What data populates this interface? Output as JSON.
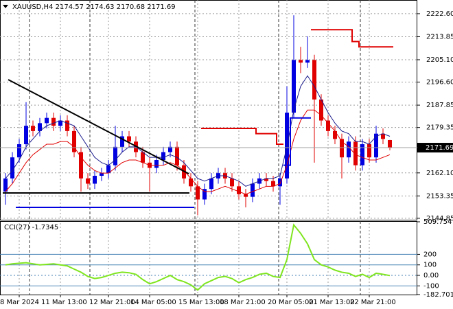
{
  "chart_data": {
    "type": "candlestick",
    "symbol": "XAUUSD,H4",
    "header_values": [
      2174.57,
      2174.63,
      2170.68,
      2171.69
    ],
    "up_color": "#0000e0",
    "down_color": "#e00000",
    "xlim": [
      -0.8,
      60
    ],
    "xticks": [
      {
        "value": 2,
        "label": "8 Mar 2024"
      },
      {
        "value": 8,
        "label": "11 Mar 13:00"
      },
      {
        "value": 15,
        "label": "12 Mar 21:00"
      },
      {
        "value": 21,
        "label": "14 Mar 05:00"
      },
      {
        "value": 28,
        "label": "15 Mar 13:00"
      },
      {
        "value": 34,
        "label": "18 Mar 21:00"
      },
      {
        "value": 41,
        "label": "20 Mar 05:00"
      },
      {
        "value": 47,
        "label": "21 Mar 13:00"
      },
      {
        "value": 53,
        "label": "22 Mar 21:00"
      }
    ],
    "ylim": [
      2144.3,
      2227.8
    ],
    "yticks": [
      {
        "value": 2222.6,
        "label": "2222.60"
      },
      2213.85,
      {
        "value": 2205.1,
        "label": "2205.10"
      },
      {
        "value": 2196.6,
        "label": "2196.60"
      },
      2187.85,
      2179.35,
      {
        "value": 2162.1,
        "label": "2162.10"
      },
      2153.35,
      2144.85
    ],
    "grid": true,
    "open": [
      2155,
      2160,
      2168,
      2173,
      2180,
      2178,
      2181,
      2183,
      2180,
      2182,
      2178,
      2170,
      2160,
      2158,
      2161,
      2162,
      2165,
      2172,
      2176,
      2174,
      2170,
      2166,
      2164,
      2167,
      2170,
      2172,
      2165,
      2160,
      2157,
      2152,
      2156,
      2160,
      2162,
      2160,
      2157,
      2154,
      2153,
      2158,
      2160,
      2159,
      2157,
      2160,
      2185,
      2205,
      2204,
      2205,
      2190,
      2182,
      2178,
      2175,
      2168,
      2174,
      2165,
      2173,
      2168,
      2177,
      2174.57
    ],
    "high": [
      2162,
      2170,
      2175,
      2189,
      2182,
      2183,
      2185,
      2185,
      2184,
      2184,
      2180,
      2172,
      2162,
      2163,
      2164,
      2167,
      2180,
      2178,
      2178,
      2176,
      2172,
      2168,
      2169,
      2172,
      2174,
      2174,
      2167,
      2162,
      2159,
      2158,
      2162,
      2164,
      2164,
      2162,
      2159,
      2156,
      2160,
      2162,
      2162,
      2161,
      2162,
      2195,
      2222,
      2210,
      2214,
      2207,
      2192,
      2184,
      2180,
      2177,
      2176,
      2176,
      2175,
      2175,
      2180,
      2179,
      2174.63
    ],
    "low": [
      2150,
      2158,
      2166,
      2171,
      2176,
      2176,
      2179,
      2178,
      2178,
      2176,
      2168,
      2155,
      2156,
      2156,
      2159,
      2160,
      2163,
      2170,
      2172,
      2168,
      2164,
      2155,
      2162,
      2165,
      2168,
      2163,
      2158,
      2155,
      2146,
      2150,
      2154,
      2158,
      2158,
      2155,
      2152,
      2149,
      2151,
      2156,
      2157,
      2155,
      2150,
      2158,
      2183,
      2200,
      2202,
      2166,
      2180,
      2176,
      2173,
      2160,
      2166,
      2163,
      2163,
      2166,
      2166,
      2173,
      2170.68
    ],
    "close": [
      2160,
      2168,
      2173,
      2180,
      2178,
      2181,
      2183,
      2180,
      2182,
      2178,
      2170,
      2160,
      2158,
      2161,
      2162,
      2165,
      2172,
      2176,
      2174,
      2170,
      2166,
      2164,
      2167,
      2170,
      2172,
      2165,
      2160,
      2157,
      2152,
      2156,
      2160,
      2162,
      2160,
      2157,
      2154,
      2153,
      2158,
      2160,
      2159,
      2157,
      2160,
      2185,
      2205,
      2204,
      2205,
      2190,
      2182,
      2178,
      2175,
      2168,
      2174,
      2165,
      2173,
      2168,
      2177,
      2175,
      2171.69
    ],
    "series": [
      {
        "color": "#e00000",
        "style": "line",
        "values": [
          2155,
          2158,
          2162,
          2166,
          2169,
          2171,
          2173,
          2173,
          2174,
          2174,
          2172,
          2168,
          2165,
          2163,
          2162,
          2162,
          2164,
          2166,
          2167,
          2167,
          2166,
          2165,
          2165,
          2165,
          2166,
          2165,
          2163,
          2160,
          2157,
          2155,
          2155,
          2156,
          2157,
          2156,
          2155,
          2154,
          2155,
          2156,
          2157,
          2157,
          2158,
          2165,
          2175,
          2182,
          2186,
          2186,
          2184,
          2181,
          2178,
          2174,
          2172,
          2169,
          2168,
          2167,
          2167,
          2168,
          2169
        ]
      },
      {
        "color": "#1a1a8c",
        "style": "line",
        "values": [
          2160,
          2163,
          2167,
          2172,
          2175,
          2178,
          2180,
          2181,
          2182,
          2181,
          2180,
          2176,
          2172,
          2168,
          2166,
          2165,
          2167,
          2170,
          2172,
          2172,
          2170,
          2168,
          2168,
          2168,
          2169,
          2168,
          2166,
          2163,
          2160,
          2159,
          2160,
          2161,
          2161,
          2160,
          2159,
          2157,
          2158,
          2159,
          2160,
          2160,
          2161,
          2172,
          2186,
          2195,
          2199,
          2195,
          2190,
          2185,
          2181,
          2178,
          2177,
          2174,
          2174,
          2173,
          2176,
          2177,
          2176
        ]
      },
      {
        "color": "#e00000",
        "style": "step",
        "values": [
          null,
          null,
          null,
          null,
          null,
          null,
          null,
          null,
          null,
          null,
          null,
          null,
          null,
          null,
          null,
          null,
          null,
          null,
          null,
          null,
          null,
          null,
          null,
          null,
          null,
          null,
          null,
          null,
          null,
          2179,
          2179,
          2179,
          2179,
          2179,
          2179,
          2179,
          2179,
          2177,
          2177,
          2177,
          2173,
          null,
          null,
          null,
          null,
          2216.5,
          2216.5,
          2216.5,
          2216.5,
          2216.5,
          2216.5,
          2212,
          2210,
          2210,
          2210,
          2210,
          2210
        ]
      },
      {
        "color": "#0000e0",
        "style": "step",
        "values": [
          null,
          null,
          2149,
          2149,
          2149,
          2149,
          2149,
          2149,
          2149,
          2149,
          2149,
          2149,
          2149,
          2149,
          2149,
          2149,
          2149,
          2149,
          2149,
          2149,
          2149,
          2149,
          2149,
          2149,
          2149,
          2149,
          2149,
          2149,
          null,
          null,
          null,
          null,
          null,
          null,
          null,
          null,
          null,
          null,
          null,
          null,
          null,
          2165,
          2183,
          2183,
          2183,
          null,
          null,
          null,
          null,
          null,
          null,
          null,
          null,
          null,
          null,
          null,
          null
        ]
      }
    ],
    "indicator": {
      "title": "CCI(27) -1.7345",
      "color": "#7fe51f",
      "level_color": "#4682b4",
      "ylim": [
        -182.7012,
        509.754
      ],
      "yticks": [
        509.754,
        200,
        100,
        {
          "value": 0,
          "label": "0.00"
        },
        -100,
        -182.7012
      ],
      "values": [
        100,
        110,
        115,
        120,
        110,
        100,
        105,
        110,
        100,
        90,
        60,
        30,
        -10,
        -30,
        -20,
        0,
        20,
        30,
        25,
        10,
        -40,
        -80,
        -60,
        -30,
        0,
        -40,
        -60,
        -90,
        -140,
        -80,
        -50,
        -20,
        -10,
        -30,
        -70,
        -40,
        -20,
        10,
        20,
        -10,
        -20,
        150,
        480,
        400,
        300,
        150,
        100,
        80,
        50,
        30,
        20,
        -10,
        10,
        -20,
        20,
        10,
        -1.7345
      ]
    }
  }
}
